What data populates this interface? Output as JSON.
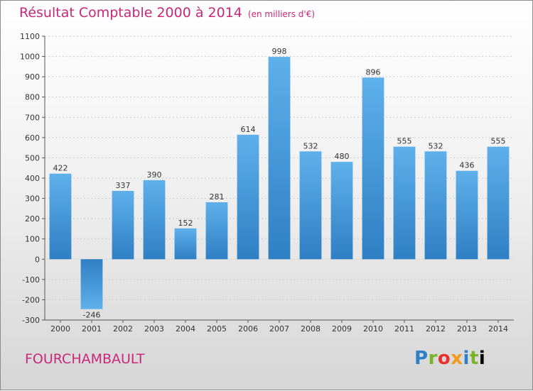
{
  "header": {
    "title": "Résultat Comptable 2000 à 2014",
    "subtitle": "(en milliers d'€)"
  },
  "footer": {
    "commune": "FOURCHAMBAULT",
    "logo_text": "Proxiti"
  },
  "colors": {
    "title": "#c8287a",
    "bar_top": "#5eb0ea",
    "bar_bottom": "#2f7fc4"
  },
  "chart_data": {
    "type": "bar",
    "title": "Résultat Comptable 2000 à 2014",
    "subtitle": "(en milliers d'€)",
    "xlabel": "",
    "ylabel": "",
    "categories": [
      "2000",
      "2001",
      "2002",
      "2003",
      "2004",
      "2005",
      "2006",
      "2007",
      "2008",
      "2009",
      "2010",
      "2011",
      "2012",
      "2013",
      "2014"
    ],
    "values": [
      422,
      -246,
      337,
      390,
      152,
      281,
      614,
      998,
      532,
      480,
      896,
      555,
      532,
      436,
      555
    ],
    "ylim": [
      -300,
      1100
    ],
    "yticks": [
      -300,
      -200,
      -100,
      0,
      100,
      200,
      300,
      400,
      500,
      600,
      700,
      800,
      900,
      1000,
      1100
    ],
    "grid": true,
    "legend": "none"
  }
}
